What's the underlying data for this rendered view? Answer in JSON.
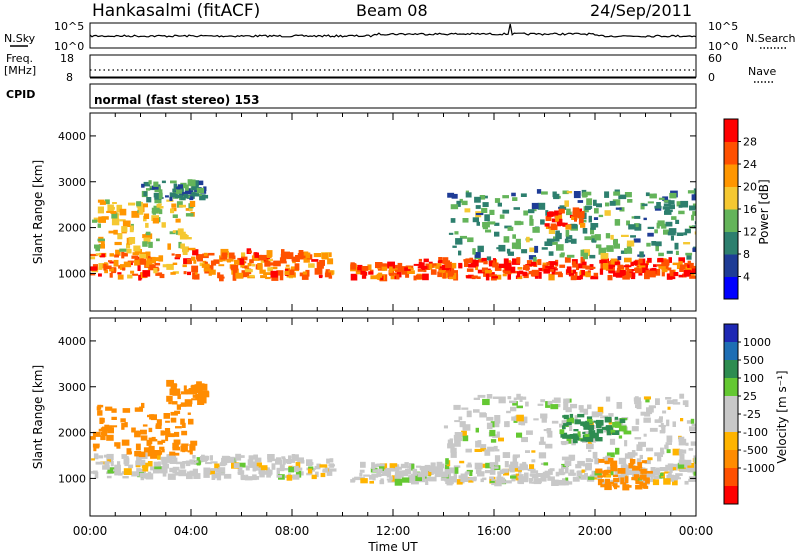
{
  "header": {
    "station": "Hankasalmi (fitACF)",
    "beam": "Beam 08",
    "date": "24/Sep/2011"
  },
  "top_panel": {
    "nsky_label": "N.Sky",
    "nsearch_label": "N.Search",
    "left_ticks": [
      "10^5",
      "10^0"
    ],
    "right_ticks": [
      "10^5",
      "10^0"
    ],
    "freq_label_1": "Freq.",
    "freq_label_2": "[MHz]",
    "freq_ticks": [
      "18",
      "8"
    ],
    "nave_ticks": [
      "60",
      "0"
    ],
    "nave_label": "Nave",
    "cpid_label": "CPID",
    "cpid_text": "normal (fast stereo) 153"
  },
  "colors": {
    "power_scale": [
      "#0000ff",
      "#1e3c96",
      "#2d7f6e",
      "#64b45a",
      "#f5c832",
      "#ff9600",
      "#ff5000",
      "#ff0000"
    ],
    "velocity_scale": [
      "#1e28b4",
      "#1e6eb4",
      "#2d8c50",
      "#64c832",
      "#c8c8c8",
      "#c8c8c8",
      "#ffb400",
      "#ff8c00",
      "#ff5000",
      "#ff0000"
    ]
  },
  "chart_data": [
    {
      "type": "heatmap",
      "title": "Power",
      "xlabel": "Time UT",
      "ylabel": "Slant Range [km]",
      "x_ticks": [
        "00:00",
        "04:00",
        "08:00",
        "12:00",
        "16:00",
        "20:00",
        "00:00"
      ],
      "y_ticks": [
        "1000",
        "2000",
        "3000",
        "4000"
      ],
      "ylim": [
        180,
        4500
      ],
      "colorbar_label": "Power [dB]",
      "colorbar_ticks": [
        "4",
        "8",
        "12",
        "16",
        "20",
        "24",
        "28"
      ],
      "colorbar_range": [
        0,
        32
      ],
      "data_gap_hours": [
        9.5,
        10.3
      ],
      "echo_bands": [
        {
          "t0": 0.0,
          "t1": 9.5,
          "range_low": 900,
          "range_high": 1500,
          "value_db": 24
        },
        {
          "t0": 0.0,
          "t1": 4.0,
          "range_low": 1500,
          "range_high": 2600,
          "value_db": 18
        },
        {
          "t0": 2.0,
          "t1": 4.5,
          "range_low": 2600,
          "range_high": 3000,
          "value_db": 10
        },
        {
          "t0": 10.3,
          "t1": 13.0,
          "range_low": 900,
          "range_high": 1200,
          "value_db": 26
        },
        {
          "t0": 13.0,
          "t1": 24.0,
          "range_low": 900,
          "range_high": 1300,
          "value_db": 27
        },
        {
          "t0": 14.0,
          "t1": 24.0,
          "range_low": 1300,
          "range_high": 2800,
          "value_db": 12
        },
        {
          "t0": 18.0,
          "t1": 19.5,
          "range_low": 2000,
          "range_high": 2400,
          "value_db": 28
        }
      ]
    },
    {
      "type": "heatmap",
      "title": "Velocity",
      "xlabel": "Time UT",
      "ylabel": "Slant Range [km]",
      "x_ticks": [
        "00:00",
        "04:00",
        "08:00",
        "12:00",
        "16:00",
        "20:00",
        "00:00"
      ],
      "y_ticks": [
        "1000",
        "2000",
        "3000",
        "4000"
      ],
      "ylim": [
        180,
        4500
      ],
      "colorbar_label": "Velocity [m s⁻¹]",
      "colorbar_ticks": [
        "1000",
        "500",
        "100",
        "25",
        "-25",
        "-100",
        "-500",
        "-1000"
      ],
      "data_gap_hours": [
        9.5,
        10.3
      ],
      "echo_bands": [
        {
          "t0": 0.0,
          "t1": 9.5,
          "range_low": 1000,
          "range_high": 1500,
          "value_ms": 0
        },
        {
          "t0": 0.0,
          "t1": 4.0,
          "range_low": 1500,
          "range_high": 2600,
          "value_ms": -150
        },
        {
          "t0": 3.0,
          "t1": 4.5,
          "range_low": 2600,
          "range_high": 3100,
          "value_ms": -200
        },
        {
          "t0": 10.3,
          "t1": 24.0,
          "range_low": 900,
          "range_high": 1300,
          "value_ms": 0
        },
        {
          "t0": 14.0,
          "t1": 24.0,
          "range_low": 1300,
          "range_high": 2800,
          "value_ms": 0
        },
        {
          "t0": 18.5,
          "t1": 21.0,
          "range_low": 1800,
          "range_high": 2400,
          "value_ms": 120
        },
        {
          "t0": 20.0,
          "t1": 22.0,
          "range_low": 800,
          "range_high": 1400,
          "value_ms": -300
        }
      ]
    }
  ]
}
